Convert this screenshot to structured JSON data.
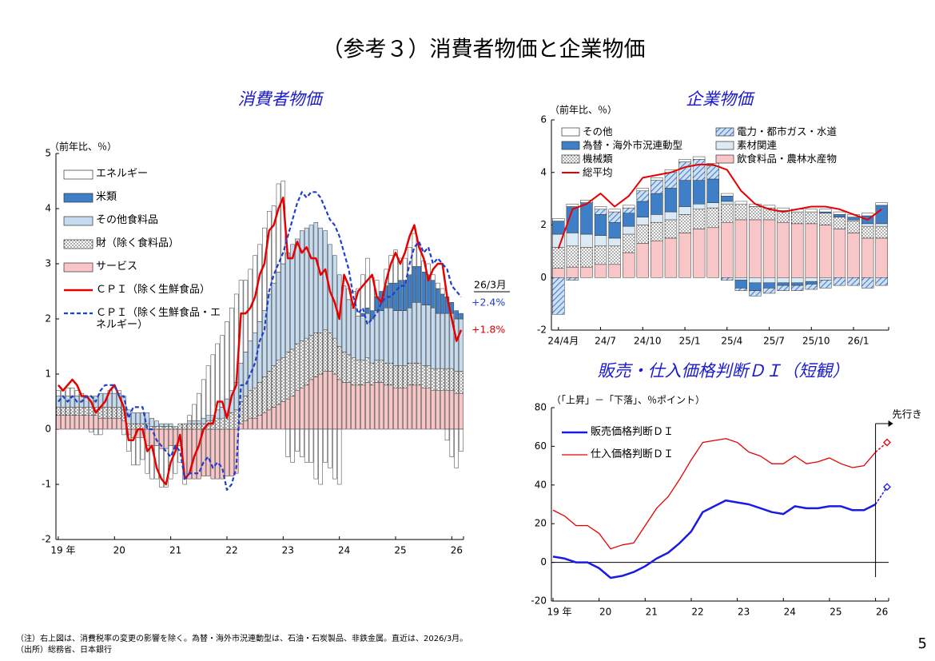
{
  "page": {
    "title": "（参考３）消費者物価と企業物価",
    "notes": [
      "（注）右上図は、消費税率の変更の影響を除く。為替・海外市況連動型は、石油・石炭製品、非鉄金属。直近は、2026/3月。",
      "（出所）総務省、日本銀行"
    ],
    "page_number": "5"
  },
  "chart_data": [
    {
      "type": "stacked_bar",
      "title": "消費者物価",
      "unit_label": "（前年比、％）",
      "categories": [
        "19 年",
        null,
        null,
        null,
        null,
        null,
        null,
        null,
        null,
        null,
        null,
        null,
        "20",
        null,
        null,
        null,
        null,
        null,
        null,
        null,
        null,
        null,
        null,
        null,
        "21",
        null,
        null,
        null,
        null,
        null,
        null,
        null,
        null,
        null,
        null,
        null,
        "22",
        null,
        null,
        null,
        null,
        null,
        null,
        null,
        null,
        null,
        null,
        null,
        "23",
        null,
        null,
        null,
        null,
        null,
        null,
        null,
        null,
        null,
        null,
        null,
        "24",
        null,
        null,
        null,
        null,
        null,
        null,
        null,
        null,
        null,
        null,
        null,
        "25",
        null,
        null,
        null,
        null,
        null,
        null,
        null,
        null,
        null,
        null,
        null,
        "26",
        null,
        null
      ],
      "ylim": [
        -2,
        5
      ],
      "yticks": [
        -2,
        -1,
        0,
        1,
        2,
        3,
        4,
        5
      ],
      "series": [
        {
          "name": "エネルギー",
          "color": "#ffffff",
          "values": [
            0.1,
            0.1,
            0.15,
            0.15,
            0.1,
            0.05,
            0.0,
            -0.05,
            -0.1,
            -0.1,
            0.0,
            0.05,
            0.1,
            0.05,
            -0.1,
            -0.3,
            -0.5,
            -0.5,
            -0.4,
            -0.5,
            -0.6,
            -0.6,
            -0.7,
            -0.7,
            -0.6,
            -0.5,
            -0.3,
            -0.1,
            0.1,
            0.3,
            0.5,
            0.7,
            0.9,
            1.1,
            1.2,
            1.3,
            1.4,
            1.5,
            1.6,
            1.5,
            1.3,
            1.3,
            1.4,
            1.4,
            1.5,
            1.5,
            1.4,
            1.6,
            1.5,
            -0.5,
            -0.6,
            -0.4,
            -0.5,
            -0.6,
            -0.6,
            -0.9,
            -1.0,
            -0.6,
            -0.7,
            -0.9,
            -1.0,
            0.0,
            0.2,
            0.3,
            0.5,
            0.7,
            0.9,
            0.6,
            0.3,
            0.0,
            0.3,
            0.5,
            0.6,
            0.4,
            0.4,
            0.5,
            0.6,
            0.4,
            0.2,
            0.2,
            0.1,
            0.1,
            0.1,
            -0.2,
            -0.5,
            -0.7,
            -0.4
          ]
        },
        {
          "name": "米類",
          "color": "#3f7fc7",
          "values": [
            0,
            0,
            0,
            0,
            0,
            0,
            0,
            0,
            0,
            0,
            0,
            0,
            0,
            0,
            0,
            0,
            0,
            0,
            0,
            0,
            0,
            0,
            0,
            0,
            0,
            0,
            0,
            0,
            0,
            0,
            0,
            0,
            0,
            0,
            0,
            0,
            0,
            0,
            0,
            0,
            0,
            0,
            0,
            0,
            0,
            0,
            0,
            0,
            0,
            0,
            0,
            0,
            0,
            0,
            0,
            0,
            0,
            0,
            0,
            0,
            0,
            0,
            0,
            0,
            0,
            0.05,
            0.1,
            0.15,
            0.25,
            0.35,
            0.4,
            0.45,
            0.5,
            0.55,
            0.55,
            0.6,
            0.65,
            0.65,
            0.6,
            0.55,
            0.5,
            0.45,
            0.35,
            0.3,
            0.2,
            0.15,
            0.1
          ]
        },
        {
          "name": "その他食料品",
          "color": "#c5dcf0",
          "values": [
            0.2,
            0.2,
            0.2,
            0.2,
            0.2,
            0.2,
            0.2,
            0.2,
            0.2,
            0.25,
            0.25,
            0.25,
            0.25,
            0.25,
            0.25,
            0.25,
            0.2,
            0.2,
            0.2,
            0.2,
            0.15,
            0.1,
            0.05,
            0.05,
            0.05,
            0.0,
            0.0,
            0.0,
            0.05,
            0.05,
            0.05,
            0.1,
            0.1,
            0.1,
            0.15,
            0.2,
            0.3,
            0.4,
            0.5,
            0.7,
            0.8,
            0.9,
            1.0,
            1.1,
            1.2,
            1.4,
            1.5,
            1.6,
            1.7,
            1.8,
            1.9,
            1.9,
            2.0,
            2.0,
            2.0,
            2.0,
            1.9,
            1.8,
            1.6,
            1.5,
            1.3,
            1.2,
            1.0,
            0.9,
            0.8,
            0.8,
            0.8,
            0.8,
            0.9,
            0.9,
            1.0,
            1.0,
            1.0,
            1.0,
            1.0,
            1.0,
            1.1,
            1.1,
            1.1,
            1.1,
            1.1,
            1.0,
            1.0,
            1.0,
            1.0,
            0.95,
            0.95
          ]
        },
        {
          "name": "財（除く食料品）",
          "color": "#ffffff",
          "pattern": "dots",
          "values": [
            0.15,
            0.15,
            0.15,
            0.15,
            0.15,
            0.15,
            0.15,
            0.15,
            0.15,
            0.2,
            0.2,
            0.2,
            0.2,
            0.2,
            0.2,
            0.1,
            0.1,
            0.1,
            0.1,
            0.1,
            0.05,
            0.05,
            0.05,
            0.05,
            0.05,
            0.05,
            0.1,
            0.1,
            0.1,
            0.1,
            0.1,
            0.1,
            0.15,
            0.15,
            0.2,
            0.2,
            0.25,
            0.3,
            0.35,
            0.4,
            0.45,
            0.5,
            0.55,
            0.6,
            0.65,
            0.7,
            0.75,
            0.8,
            0.8,
            0.85,
            0.85,
            0.85,
            0.85,
            0.85,
            0.8,
            0.8,
            0.75,
            0.75,
            0.7,
            0.65,
            0.6,
            0.55,
            0.5,
            0.5,
            0.45,
            0.45,
            0.45,
            0.4,
            0.4,
            0.4,
            0.4,
            0.4,
            0.4,
            0.4,
            0.4,
            0.4,
            0.4,
            0.4,
            0.4,
            0.4,
            0.4,
            0.4,
            0.4,
            0.4,
            0.4,
            0.4,
            0.4
          ]
        },
        {
          "name": "サービス",
          "color": "#f8c6c6",
          "values": [
            0.25,
            0.25,
            0.25,
            0.25,
            0.25,
            0.25,
            0.25,
            0.25,
            0.25,
            0.2,
            0.2,
            0.2,
            0.2,
            0.2,
            0.15,
            -0.1,
            -0.15,
            -0.15,
            -0.15,
            -0.3,
            -0.3,
            -0.3,
            -0.35,
            -0.35,
            -0.3,
            -0.3,
            -0.3,
            -0.9,
            -0.9,
            -0.9,
            -0.9,
            -0.85,
            -0.85,
            -0.9,
            -0.9,
            -0.9,
            -0.85,
            -0.85,
            -0.8,
            0.1,
            0.15,
            0.2,
            0.2,
            0.25,
            0.3,
            0.35,
            0.4,
            0.45,
            0.5,
            0.55,
            0.6,
            0.7,
            0.75,
            0.8,
            0.9,
            0.95,
            1.0,
            1.05,
            1.05,
            1.0,
            0.9,
            0.85,
            0.85,
            0.8,
            0.8,
            0.8,
            0.85,
            0.8,
            0.85,
            0.85,
            0.8,
            0.8,
            0.75,
            0.75,
            0.75,
            0.8,
            0.8,
            0.8,
            0.75,
            0.75,
            0.7,
            0.7,
            0.7,
            0.7,
            0.7,
            0.65,
            0.65
          ]
        },
        {
          "name": "ＣＰＩ（除く生鮮食品）",
          "color": "#e60000",
          "kind": "line",
          "line_width": 2.5,
          "values": [
            0.8,
            0.7,
            0.8,
            0.9,
            0.8,
            0.6,
            0.6,
            0.5,
            0.3,
            0.4,
            0.5,
            0.7,
            0.8,
            0.6,
            0.4,
            -0.2,
            -0.2,
            0.0,
            0.0,
            -0.4,
            -0.3,
            -0.7,
            -0.9,
            -1.0,
            -0.6,
            -0.4,
            -0.1,
            -0.9,
            -0.8,
            -0.5,
            -0.3,
            0.0,
            0.1,
            0.1,
            0.5,
            0.5,
            0.2,
            0.6,
            0.8,
            2.1,
            2.1,
            2.2,
            2.4,
            2.8,
            3.0,
            3.6,
            3.7,
            4.0,
            4.2,
            3.1,
            3.1,
            3.4,
            3.2,
            3.3,
            3.1,
            3.1,
            2.8,
            2.9,
            2.5,
            2.3,
            2.0,
            2.8,
            2.6,
            2.2,
            2.5,
            2.6,
            2.7,
            2.8,
            2.4,
            2.3,
            2.7,
            3.0,
            3.2,
            3.0,
            3.2,
            3.5,
            3.7,
            3.3,
            3.1,
            2.7,
            2.9,
            3.0,
            3.0,
            2.4,
            2.0,
            1.6,
            1.8
          ]
        },
        {
          "name": "ＣＰＩ（除く生鮮食品・エネルギー）",
          "color": "#1f3fd0",
          "kind": "line",
          "dash": true,
          "line_width": 2.2,
          "values": [
            0.5,
            0.6,
            0.5,
            0.6,
            0.5,
            0.5,
            0.6,
            0.6,
            0.5,
            0.7,
            0.8,
            0.8,
            0.8,
            0.6,
            0.6,
            0.2,
            0.4,
            0.4,
            0.4,
            0.0,
            0.0,
            -0.2,
            -0.3,
            -0.4,
            -0.5,
            -0.3,
            -0.4,
            -0.9,
            -0.8,
            -0.8,
            -0.8,
            -0.6,
            -0.5,
            -0.7,
            -0.6,
            -0.7,
            -1.1,
            -1.0,
            -0.7,
            0.8,
            0.8,
            1.0,
            1.2,
            1.6,
            1.8,
            2.5,
            2.8,
            3.0,
            3.2,
            3.5,
            3.8,
            4.1,
            4.3,
            4.2,
            4.3,
            4.3,
            4.2,
            4.0,
            3.8,
            3.7,
            3.5,
            3.2,
            2.9,
            2.4,
            2.1,
            2.2,
            1.9,
            2.0,
            2.1,
            2.3,
            2.4,
            2.4,
            2.5,
            2.6,
            2.6,
            3.0,
            3.3,
            3.4,
            3.2,
            3.3,
            3.0,
            3.1,
            3.0,
            2.9,
            2.6,
            2.5,
            2.4
          ]
        }
      ],
      "annotations": [
        {
          "text": "26/3月",
          "color": "#000000"
        },
        {
          "text": "+2.4%",
          "color": "#1f3fd0"
        },
        {
          "text": "+1.8%",
          "color": "#e60000"
        }
      ]
    },
    {
      "type": "stacked_bar",
      "title": "企業物価",
      "unit_label": "（前年比、％）",
      "categories": [
        "24/4月",
        null,
        null,
        "24/7",
        null,
        null,
        "24/10",
        null,
        null,
        "25/1",
        null,
        null,
        "25/4",
        null,
        null,
        "25/7",
        null,
        null,
        "25/10",
        null,
        null,
        "26/1",
        null,
        null
      ],
      "ylim": [
        -2,
        6
      ],
      "yticks": [
        -2,
        0,
        2,
        4,
        6
      ],
      "series": [
        {
          "name": "その他",
          "color": "#ffffff",
          "values": [
            0.1,
            0.1,
            0.1,
            0.1,
            0.1,
            0.1,
            0.1,
            0.1,
            0.1,
            0.1,
            0.1,
            0.1,
            0.1,
            0.1,
            0.1,
            0.1,
            0.1,
            0.1,
            0.1,
            0.1,
            0.1,
            0.1,
            0.1,
            0.1
          ]
        },
        {
          "name": "電力・都市ガス・水道",
          "color": "#a9c8ec",
          "pattern": "hatch",
          "values": [
            -1.4,
            -0.1,
            0.0,
            0.2,
            0.4,
            0.2,
            0.4,
            0.5,
            0.6,
            0.7,
            0.8,
            0.5,
            -0.1,
            -0.1,
            -0.2,
            -0.2,
            -0.2,
            -0.2,
            -0.2,
            -0.3,
            -0.3,
            -0.3,
            -0.4,
            -0.3
          ]
        },
        {
          "name": "為替・海外市況連動型",
          "color": "#3f7fc7",
          "values": [
            0.5,
            1.0,
            1.2,
            0.8,
            0.6,
            0.5,
            0.6,
            0.8,
            0.9,
            1.0,
            0.9,
            0.9,
            0.2,
            -0.3,
            -0.3,
            -0.2,
            -0.1,
            -0.1,
            -0.1,
            0.05,
            0.1,
            0.1,
            0.3,
            0.7
          ]
        },
        {
          "name": "素材関連",
          "color": "#dceaf6",
          "values": [
            0.5,
            0.5,
            0.5,
            0.4,
            0.3,
            0.3,
            0.3,
            0.3,
            0.3,
            0.3,
            0.2,
            0.2,
            0.1,
            -0.1,
            -0.2,
            -0.2,
            -0.2,
            -0.2,
            -0.15,
            -0.1,
            0.0,
            0.05,
            0.1,
            0.1
          ]
        },
        {
          "name": "機械類",
          "color": "#ffffff",
          "pattern": "dots",
          "values": [
            0.8,
            0.8,
            0.75,
            0.7,
            0.7,
            0.7,
            0.7,
            0.7,
            0.7,
            0.7,
            0.75,
            0.75,
            0.7,
            0.6,
            0.5,
            0.45,
            0.45,
            0.45,
            0.45,
            0.45,
            0.45,
            0.45,
            0.45,
            0.45
          ]
        },
        {
          "name": "飲食料品・農林水産物",
          "color": "#f8c6c6",
          "values": [
            0.35,
            0.4,
            0.4,
            0.5,
            0.5,
            0.95,
            1.3,
            1.4,
            1.5,
            1.7,
            1.85,
            1.9,
            2.1,
            2.2,
            2.2,
            2.2,
            2.1,
            2.05,
            2.05,
            2.0,
            1.85,
            1.7,
            1.5,
            1.5
          ]
        },
        {
          "name": "総平均",
          "color": "#e60000",
          "kind": "line",
          "line_width": 2,
          "values": [
            1.1,
            2.6,
            2.8,
            3.2,
            2.7,
            3.1,
            3.8,
            3.9,
            4.0,
            4.2,
            4.3,
            4.3,
            4.1,
            3.3,
            2.8,
            2.6,
            2.5,
            2.6,
            2.7,
            2.7,
            2.6,
            2.4,
            2.2,
            2.6
          ]
        }
      ]
    },
    {
      "type": "line",
      "title": "販売・仕入価格判断ＤＩ（短観）",
      "unit_label": "（「上昇」－「下落」、％ポイント）",
      "categories": [
        "19 年",
        null,
        null,
        null,
        "20",
        null,
        null,
        null,
        "21",
        null,
        null,
        null,
        "22",
        null,
        null,
        null,
        "23",
        null,
        null,
        null,
        "24",
        null,
        null,
        null,
        "25",
        null,
        null,
        null,
        "26"
      ],
      "ylim": [
        -20,
        80
      ],
      "yticks": [
        -20,
        0,
        20,
        40,
        60,
        80
      ],
      "zero_line": true,
      "series": [
        {
          "name": "販売価格判断ＤＩ",
          "color": "#1a1ae6",
          "line_width": 2.5,
          "values": [
            3,
            2,
            0,
            0,
            -3,
            -8,
            -7,
            -5,
            -2,
            2,
            5,
            10,
            16,
            26,
            29,
            32,
            31,
            30,
            28,
            26,
            25,
            29,
            28,
            28,
            29,
            29,
            27,
            27,
            30
          ],
          "forecast": 39
        },
        {
          "name": "仕入価格判断ＤＩ",
          "color": "#e60000",
          "line_width": 1.3,
          "values": [
            27,
            24,
            19,
            19,
            15,
            7,
            9,
            10,
            19,
            28,
            34,
            43,
            53,
            62,
            63,
            64,
            62,
            57,
            55,
            51,
            51,
            55,
            51,
            52,
            54,
            51,
            49,
            50,
            57
          ],
          "forecast": 62
        }
      ],
      "annotations": [
        {
          "text": "先行き",
          "color": "#000000"
        }
      ]
    }
  ]
}
